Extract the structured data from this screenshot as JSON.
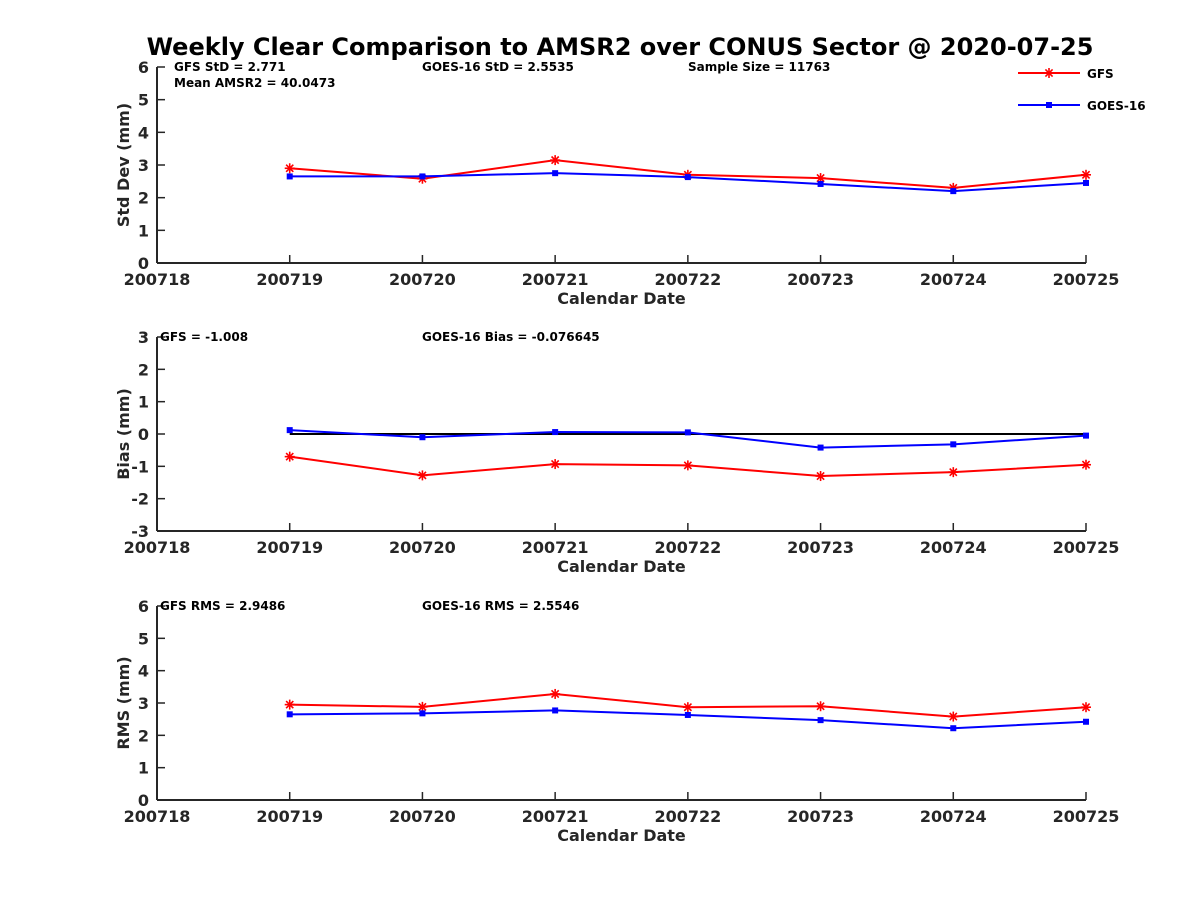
{
  "title": "Weekly Clear Comparison to AMSR2 over CONUS Sector @ 2020-07-25",
  "legend": [
    {
      "name": "GFS",
      "color": "#ff0000",
      "marker": "asterisk"
    },
    {
      "name": "GOES-16",
      "color": "#0000ff",
      "marker": "square"
    }
  ],
  "chart_data": [
    {
      "type": "line",
      "ylabel": "Std Dev (mm)",
      "xlabel": "Calendar Date",
      "x_ticks": [
        "200718",
        "200719",
        "200720",
        "200721",
        "200722",
        "200723",
        "200724",
        "200725"
      ],
      "ylim": [
        0,
        6
      ],
      "y_ticks": [
        "0",
        "1",
        "2",
        "3",
        "4",
        "5",
        "6"
      ],
      "annotations": [
        "GFS StD = 2.771",
        "Mean AMSR2 = 40.0473",
        "GOES-16 StD = 2.5535",
        "Sample Size = 11763"
      ],
      "series": [
        {
          "name": "GFS",
          "color": "#ff0000",
          "marker": "asterisk",
          "x": [
            "200719",
            "200720",
            "200721",
            "200722",
            "200723",
            "200724",
            "200725"
          ],
          "values": [
            2.9,
            2.58,
            3.15,
            2.7,
            2.6,
            2.3,
            2.7
          ]
        },
        {
          "name": "GOES-16",
          "color": "#0000ff",
          "marker": "square",
          "x": [
            "200719",
            "200720",
            "200721",
            "200722",
            "200723",
            "200724",
            "200725"
          ],
          "values": [
            2.65,
            2.65,
            2.75,
            2.63,
            2.42,
            2.2,
            2.45
          ]
        }
      ],
      "reference_line": null
    },
    {
      "type": "line",
      "ylabel": "Bias (mm)",
      "xlabel": "Calendar Date",
      "x_ticks": [
        "200718",
        "200719",
        "200720",
        "200721",
        "200722",
        "200723",
        "200724",
        "200725"
      ],
      "ylim": [
        -3,
        3
      ],
      "y_ticks": [
        "-3",
        "-2",
        "-1",
        "0",
        "1",
        "2",
        "3"
      ],
      "annotations": [
        "GFS = -1.008",
        "GOES-16 Bias  = -0.076645"
      ],
      "series": [
        {
          "name": "GFS",
          "color": "#ff0000",
          "marker": "asterisk",
          "x": [
            "200719",
            "200720",
            "200721",
            "200722",
            "200723",
            "200724",
            "200725"
          ],
          "values": [
            -0.7,
            -1.28,
            -0.93,
            -0.97,
            -1.3,
            -1.18,
            -0.95
          ]
        },
        {
          "name": "GOES-16",
          "color": "#0000ff",
          "marker": "square",
          "x": [
            "200719",
            "200720",
            "200721",
            "200722",
            "200723",
            "200724",
            "200725"
          ],
          "values": [
            0.12,
            -0.1,
            0.06,
            0.05,
            -0.42,
            -0.32,
            -0.05
          ]
        }
      ],
      "reference_line": {
        "value": 0,
        "color": "#000000",
        "x_from": "200719",
        "x_to": "200725"
      }
    },
    {
      "type": "line",
      "ylabel": "RMS (mm)",
      "xlabel": "Calendar Date",
      "x_ticks": [
        "200718",
        "200719",
        "200720",
        "200721",
        "200722",
        "200723",
        "200724",
        "200725"
      ],
      "ylim": [
        0,
        6
      ],
      "y_ticks": [
        "0",
        "1",
        "2",
        "3",
        "4",
        "5",
        "6"
      ],
      "annotations": [
        "GFS RMS = 2.9486",
        "GOES-16 RMS = 2.5546"
      ],
      "series": [
        {
          "name": "GFS",
          "color": "#ff0000",
          "marker": "asterisk",
          "x": [
            "200719",
            "200720",
            "200721",
            "200722",
            "200723",
            "200724",
            "200725"
          ],
          "values": [
            2.95,
            2.88,
            3.28,
            2.87,
            2.9,
            2.58,
            2.87
          ]
        },
        {
          "name": "GOES-16",
          "color": "#0000ff",
          "marker": "square",
          "x": [
            "200719",
            "200720",
            "200721",
            "200722",
            "200723",
            "200724",
            "200725"
          ],
          "values": [
            2.65,
            2.68,
            2.77,
            2.63,
            2.47,
            2.22,
            2.42
          ]
        }
      ],
      "reference_line": null
    }
  ]
}
